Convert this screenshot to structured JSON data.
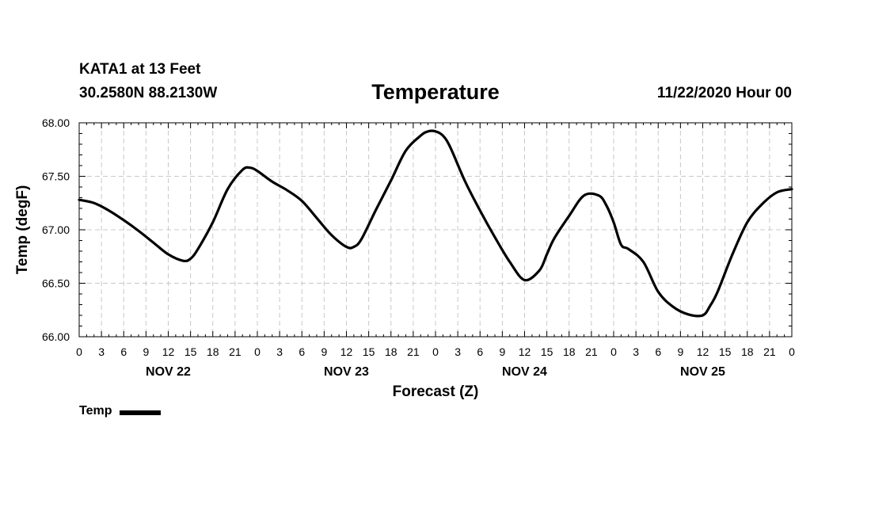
{
  "header": {
    "station": "KATA1 at 13 Feet",
    "coordinates": "30.2580N 88.2130W",
    "run": "11/22/2020 Hour 00"
  },
  "chart_data": {
    "type": "line",
    "title": "Temperature",
    "xlabel": "Forecast (Z)",
    "ylabel": "Temp (degF)",
    "xlim": [
      0,
      96
    ],
    "ylim": [
      66.0,
      68.0
    ],
    "y_ticks": [
      "66.00",
      "66.50",
      "67.00",
      "67.50",
      "68.00"
    ],
    "x_ticks": [
      {
        "x": 0,
        "label": "0"
      },
      {
        "x": 3,
        "label": "3"
      },
      {
        "x": 6,
        "label": "6"
      },
      {
        "x": 9,
        "label": "9"
      },
      {
        "x": 12,
        "label": "12"
      },
      {
        "x": 15,
        "label": "15"
      },
      {
        "x": 18,
        "label": "18"
      },
      {
        "x": 21,
        "label": "21"
      },
      {
        "x": 24,
        "label": "0"
      },
      {
        "x": 27,
        "label": "3"
      },
      {
        "x": 30,
        "label": "6"
      },
      {
        "x": 33,
        "label": "9"
      },
      {
        "x": 36,
        "label": "12"
      },
      {
        "x": 39,
        "label": "15"
      },
      {
        "x": 42,
        "label": "18"
      },
      {
        "x": 45,
        "label": "21"
      },
      {
        "x": 48,
        "label": "0"
      },
      {
        "x": 51,
        "label": "3"
      },
      {
        "x": 54,
        "label": "6"
      },
      {
        "x": 57,
        "label": "9"
      },
      {
        "x": 60,
        "label": "12"
      },
      {
        "x": 63,
        "label": "15"
      },
      {
        "x": 66,
        "label": "18"
      },
      {
        "x": 69,
        "label": "21"
      },
      {
        "x": 72,
        "label": "0"
      },
      {
        "x": 75,
        "label": "3"
      },
      {
        "x": 78,
        "label": "6"
      },
      {
        "x": 81,
        "label": "9"
      },
      {
        "x": 84,
        "label": "12"
      },
      {
        "x": 87,
        "label": "15"
      },
      {
        "x": 90,
        "label": "18"
      },
      {
        "x": 93,
        "label": "21"
      },
      {
        "x": 96,
        "label": "0"
      }
    ],
    "day_labels": [
      {
        "x": 12,
        "label": "NOV 22"
      },
      {
        "x": 36,
        "label": "NOV 23"
      },
      {
        "x": 60,
        "label": "NOV 24"
      },
      {
        "x": 84,
        "label": "NOV 25"
      }
    ],
    "grid": true,
    "legend": "bottom-left",
    "series": [
      {
        "name": "Temp",
        "color": "#000000",
        "x": [
          0,
          2,
          4,
          6,
          8,
          10,
          12,
          14,
          15,
          16,
          18,
          20,
          22,
          23,
          24,
          26,
          28,
          30,
          32,
          34,
          36,
          37,
          38,
          40,
          42,
          44,
          46,
          47,
          48,
          49,
          50,
          52,
          54,
          56,
          58,
          60,
          62,
          63,
          64,
          66,
          68,
          70,
          71,
          72,
          73,
          74,
          76,
          78,
          80,
          82,
          84,
          85,
          86,
          88,
          90,
          92,
          94,
          96
        ],
        "values": [
          67.28,
          67.25,
          67.18,
          67.09,
          66.99,
          66.88,
          66.77,
          66.71,
          66.73,
          66.82,
          67.07,
          67.38,
          67.56,
          67.58,
          67.55,
          67.45,
          67.37,
          67.27,
          67.11,
          66.95,
          66.84,
          66.84,
          66.91,
          67.19,
          67.46,
          67.74,
          67.88,
          67.92,
          67.92,
          67.88,
          67.77,
          67.45,
          67.18,
          66.93,
          66.7,
          66.53,
          66.62,
          66.77,
          66.92,
          67.13,
          67.32,
          67.32,
          67.23,
          67.07,
          66.86,
          66.82,
          66.7,
          66.42,
          66.28,
          66.21,
          66.2,
          66.29,
          66.42,
          66.77,
          67.07,
          67.24,
          67.35,
          67.38
        ]
      }
    ]
  }
}
